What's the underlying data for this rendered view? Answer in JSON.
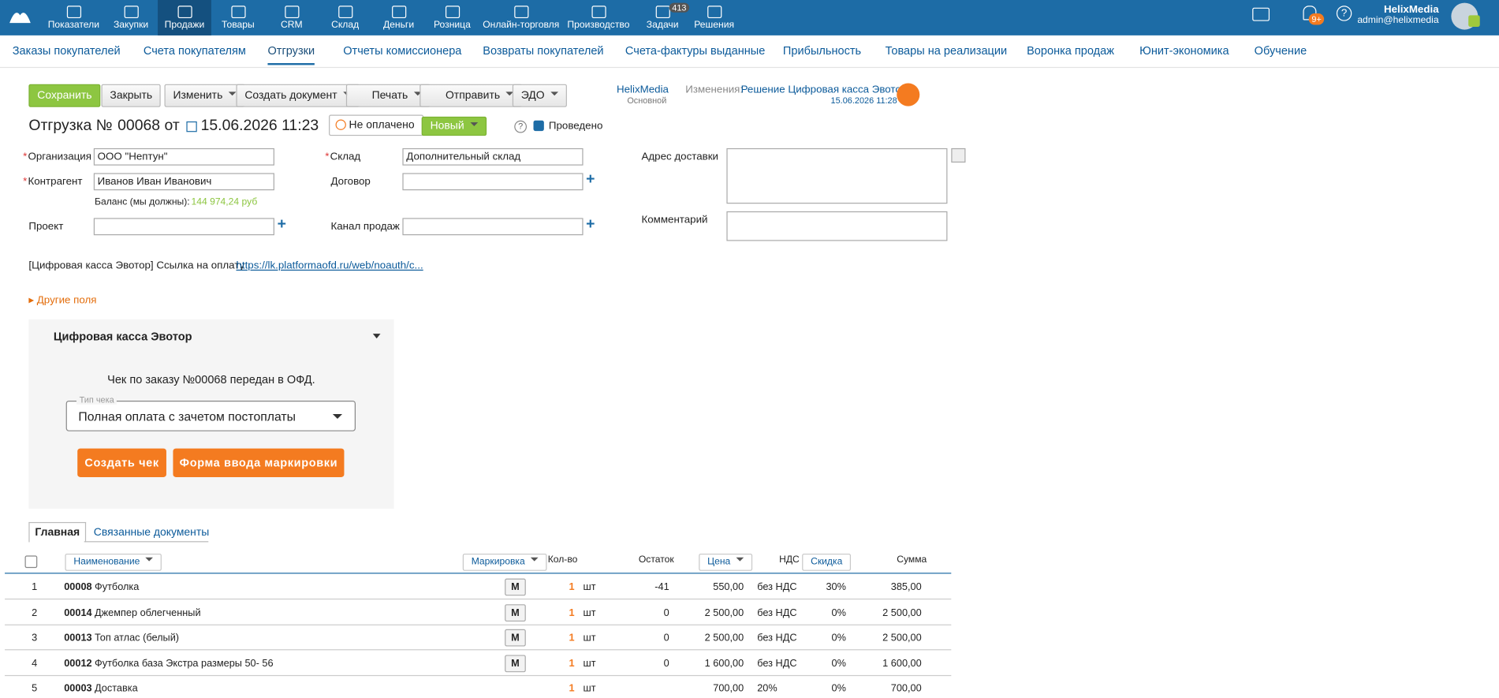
{
  "nav": {
    "items": [
      "Показатели",
      "Закупки",
      "Продажи",
      "Товары",
      "CRM",
      "Склад",
      "Деньги",
      "Розница",
      "Онлайн-торговля",
      "Производство",
      "Задачи",
      "Решения"
    ],
    "tasks_badge": "413",
    "notif_badge": "9+",
    "user_name": "HelixMedia",
    "user_email": "admin@helixmedia"
  },
  "subnav": [
    "Заказы покупателей",
    "Счета покупателям",
    "Отгрузки",
    "Отчеты комиссионера",
    "Возвраты покупателей",
    "Счета-фактуры выданные",
    "Прибыльность",
    "Товары на реализации",
    "Воронка продаж",
    "Юнит-экономика",
    "Обучение"
  ],
  "toolbar": {
    "save": "Сохранить",
    "close": "Закрыть",
    "edit": "Изменить",
    "create_doc": "Создать документ",
    "print": "Печать",
    "send": "Отправить",
    "edo": "ЭДО",
    "owner": "HelixMedia",
    "owner_sub": "Основной",
    "changes_label": "Изменения:",
    "changes_value": "Решение Цифровая касса Эвотор",
    "changes_date": "15.06.2026 11:28"
  },
  "doc": {
    "title": "Отгрузка №",
    "number": "00068",
    "from": "от",
    "date": "15.06.2026 11:23",
    "payment_status": "Не оплачено",
    "status": "Новый",
    "posted": "Проведено"
  },
  "form": {
    "org_label": "Организация",
    "org_value": "ООО \"Нептун\"",
    "store_label": "Склад",
    "store_value": "Дополнительный склад",
    "address_label": "Адрес доставки",
    "contractor_label": "Контрагент",
    "contractor_value": "Иванов Иван Иванович",
    "contract_label": "Договор",
    "balance_label": "Баланс (мы должны):",
    "balance_value": "144 974,24 руб",
    "project_label": "Проект",
    "channel_label": "Канал продаж",
    "comment_label": "Комментарий",
    "link_label": "[Цифровая касса Эвотор] Ссылка на оплату",
    "link_value": "https://lk.platformaofd.ru/web/noauth/c...",
    "other_fields": "Другие поля"
  },
  "evotor": {
    "title": "Цифровая касса Эвотор",
    "message": "Чек по заказу №00068 передан в ОФД.",
    "check_type_label": "Тип чека",
    "check_type_value": "Полная оплата с зачетом постоплаты",
    "create_check": "Создать чек",
    "marking_form": "Форма ввода маркировки"
  },
  "tabs": [
    "Главная",
    "Связанные документы"
  ],
  "table": {
    "headers": [
      "Наименование",
      "Маркировка",
      "Кол-во",
      "Остаток",
      "Цена",
      "НДС",
      "Скидка",
      "Сумма"
    ],
    "rows": [
      [
        "1",
        "00008",
        "Футболка",
        "М",
        "1",
        "шт",
        "-41",
        "550,00",
        "без НДС",
        "30%",
        "385,00"
      ],
      [
        "2",
        "00014",
        "Джемпер облегченный",
        "М",
        "1",
        "шт",
        "0",
        "2 500,00",
        "без НДС",
        "0%",
        "2 500,00"
      ],
      [
        "3",
        "00013",
        "Топ атлас (белый)",
        "М",
        "1",
        "шт",
        "0",
        "2 500,00",
        "без НДС",
        "0%",
        "2 500,00"
      ],
      [
        "4",
        "00012",
        "Футболка база Экстра размеры 50- 56",
        "М",
        "1",
        "шт",
        "0",
        "1 600,00",
        "без НДС",
        "0%",
        "1 600,00"
      ],
      [
        "5",
        "00003",
        "Доставка",
        null,
        "1",
        "шт",
        null,
        "700,00",
        "20%",
        "0%",
        "700,00"
      ]
    ]
  }
}
